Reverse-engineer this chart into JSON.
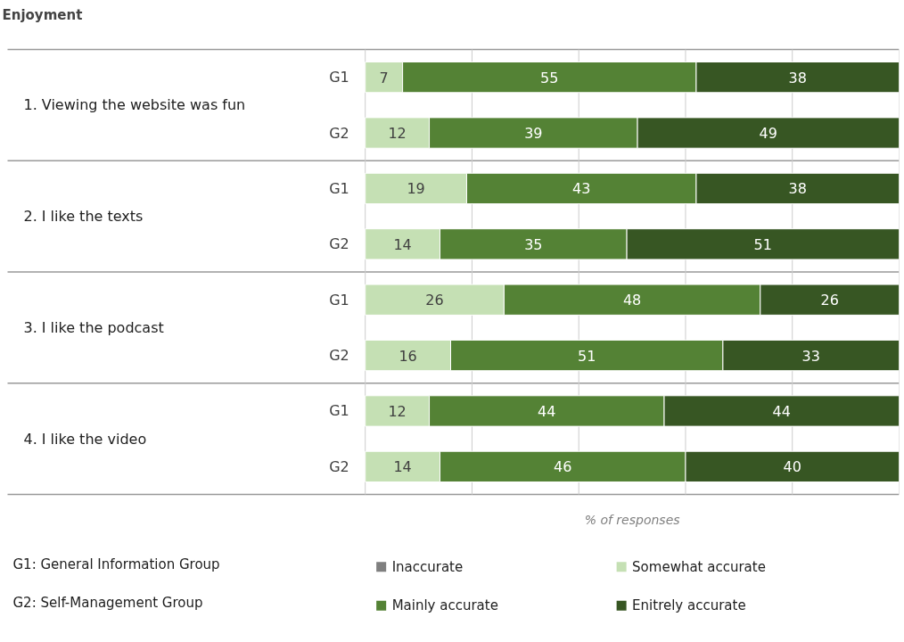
{
  "chart_data": {
    "type": "bar",
    "orientation": "horizontal",
    "stacked": true,
    "title": "Enjoyment",
    "xlabel": "% of responses",
    "categories": [
      "G1",
      "G2",
      "G1",
      "G2",
      "G1",
      "G2",
      "G1",
      "G2"
    ],
    "series": [
      {
        "name": "Inaccurate",
        "color": "#7f7f7f",
        "values": [
          null,
          null,
          null,
          null,
          null,
          null,
          null,
          null
        ]
      },
      {
        "name": "Somewhat accurate",
        "color": "#c5e0b4",
        "values": [
          7,
          12,
          19,
          14,
          26,
          16,
          12,
          14
        ]
      },
      {
        "name": "Mainly accurate",
        "color": "#548235",
        "values": [
          55,
          39,
          43,
          35,
          48,
          51,
          44,
          46
        ]
      },
      {
        "name": "Enitrely accurate",
        "color": "#375623",
        "values": [
          38,
          49,
          38,
          51,
          26,
          33,
          44,
          40
        ]
      }
    ],
    "xlim": [
      0,
      100
    ],
    "xticks": [
      {
        "value": 0,
        "label": null
      },
      {
        "value": 20,
        "label": null
      },
      {
        "value": 40,
        "label": null
      },
      {
        "value": 60,
        "label": null
      },
      {
        "value": 80,
        "label": null
      },
      {
        "value": 100,
        "label": null
      }
    ],
    "tick_labels": "y",
    "grid": "x",
    "data_labels": true,
    "legend": "bottom",
    "annotations": [
      "1.  Viewing the website was fun",
      "2.  I like the texts",
      "3.  I like the podcast",
      "4.  I like the video",
      "G1: General Information Group",
      "G2: Self-Management Group"
    ]
  }
}
